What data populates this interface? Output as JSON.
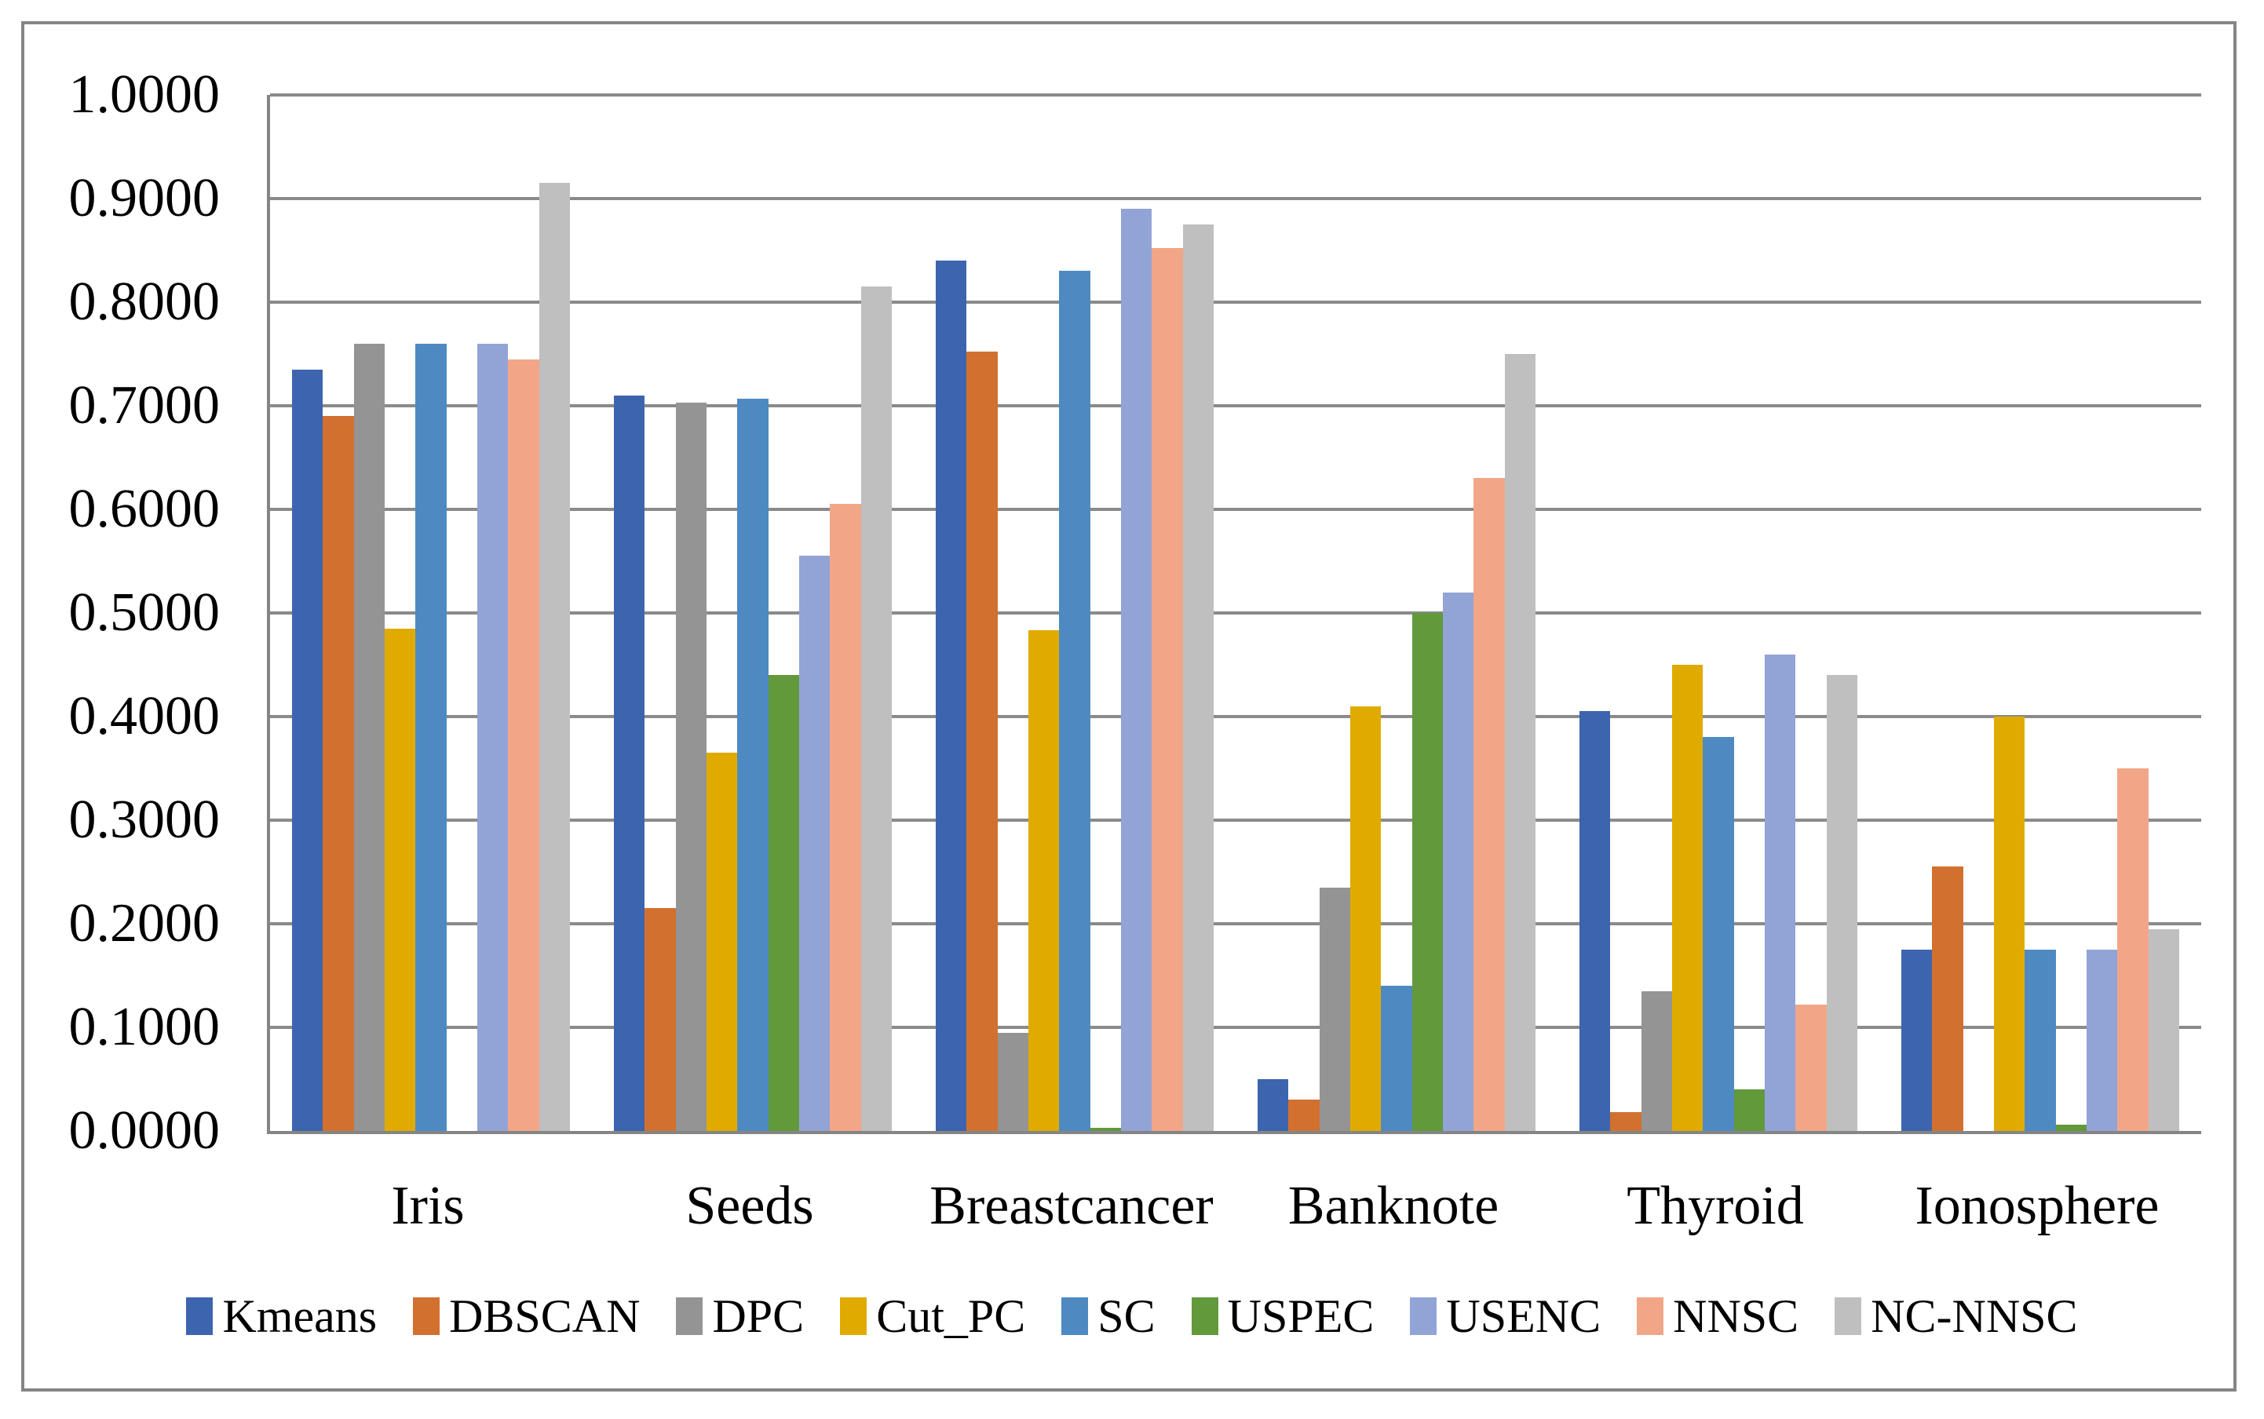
{
  "chart_data": {
    "type": "bar",
    "title": "",
    "xlabel": "",
    "ylabel": "",
    "categories": [
      "Iris",
      "Seeds",
      "Breastcancer",
      "Banknote",
      "Thyroid",
      "Ionosphere"
    ],
    "series": [
      {
        "name": "Kmeans",
        "color": "#3D64AE",
        "values": [
          0.735,
          0.71,
          0.84,
          0.05,
          0.405,
          0.175
        ]
      },
      {
        "name": "DBSCAN",
        "color": "#D2702F",
        "values": [
          0.69,
          0.215,
          0.752,
          0.03,
          0.018,
          0.255
        ]
      },
      {
        "name": "DPC",
        "color": "#949494",
        "values": [
          0.76,
          0.703,
          0.095,
          0.235,
          0.135,
          0.0
        ]
      },
      {
        "name": "Cut_PC",
        "color": "#E0AB00",
        "values": [
          0.485,
          0.365,
          0.483,
          0.41,
          0.45,
          0.4
        ]
      },
      {
        "name": "SC",
        "color": "#4E8AC1",
        "values": [
          0.76,
          0.707,
          0.83,
          0.14,
          0.38,
          0.175
        ]
      },
      {
        "name": "USPEC",
        "color": "#61993B",
        "values": [
          0.0,
          0.44,
          0.003,
          0.5,
          0.04,
          0.006
        ]
      },
      {
        "name": "USENC",
        "color": "#92A3D6",
        "values": [
          0.76,
          0.555,
          0.89,
          0.52,
          0.46,
          0.175
        ]
      },
      {
        "name": "NNSC",
        "color": "#F2A688",
        "values": [
          0.745,
          0.605,
          0.852,
          0.63,
          0.122,
          0.35
        ]
      },
      {
        "name": "NC-NNSC",
        "color": "#BFBFBF",
        "values": [
          0.915,
          0.815,
          0.875,
          0.75,
          0.44,
          0.195
        ]
      }
    ],
    "y_ticks": [
      "1.0000",
      "0.9000",
      "0.8000",
      "0.7000",
      "0.6000",
      "0.5000",
      "0.4000",
      "0.3000",
      "0.2000",
      "0.1000",
      "0.0000"
    ],
    "ylim": [
      0,
      1
    ],
    "grid": true,
    "legend_position": "bottom"
  },
  "colors": {
    "background": "#FFFFFF",
    "border": "#858585",
    "gridline": "#8A8A8A",
    "axis": "#858585",
    "text": "#000000"
  }
}
